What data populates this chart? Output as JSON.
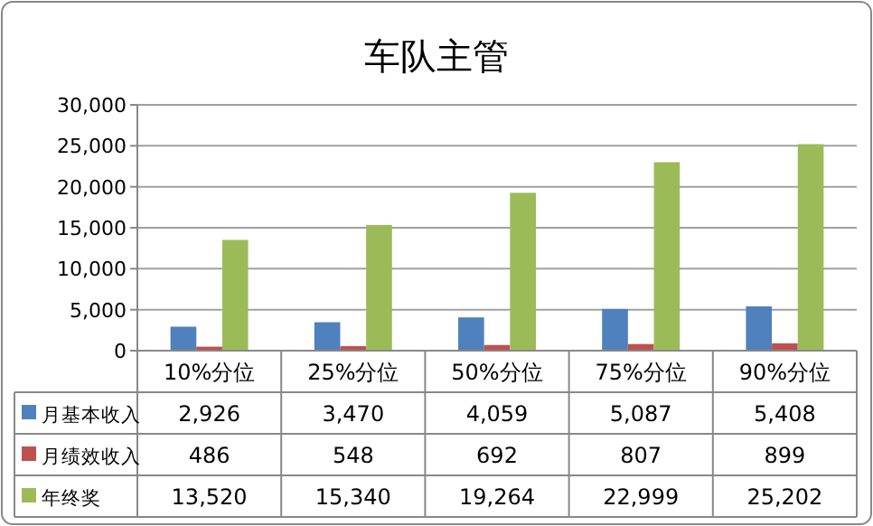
{
  "chart_data": {
    "type": "bar",
    "title": "车队主管",
    "categories": [
      "10%分位",
      "25%分位",
      "50%分位",
      "75%分位",
      "90%分位"
    ],
    "series": [
      {
        "name": "月基本收入",
        "color": "#4f81bd",
        "values": [
          2926,
          3470,
          4059,
          5087,
          5408
        ],
        "value_labels": [
          "2,926",
          "3,470",
          "4,059",
          "5,087",
          "5,408"
        ]
      },
      {
        "name": "月绩效收入",
        "color": "#c0504d",
        "values": [
          486,
          548,
          692,
          807,
          899
        ],
        "value_labels": [
          "486",
          "548",
          "692",
          "807",
          "899"
        ]
      },
      {
        "name": "年终奖",
        "color": "#9bbb59",
        "values": [
          13520,
          15340,
          19264,
          22999,
          25202
        ],
        "value_labels": [
          "13,520",
          "15,340",
          "19,264",
          "22,999",
          "25,202"
        ]
      }
    ],
    "ylim": [
      0,
      30000
    ],
    "yticks": [
      0,
      {
        "value": 5000,
        "label": "5,000"
      },
      {
        "value": 10000,
        "label": "10,000"
      },
      {
        "value": 15000,
        "label": "15,000"
      },
      {
        "value": 20000,
        "label": "20,000"
      },
      {
        "value": 25000,
        "label": "25,000"
      },
      {
        "value": 30000,
        "label": "30,000"
      }
    ],
    "grid": "y",
    "legend": "bottom"
  }
}
